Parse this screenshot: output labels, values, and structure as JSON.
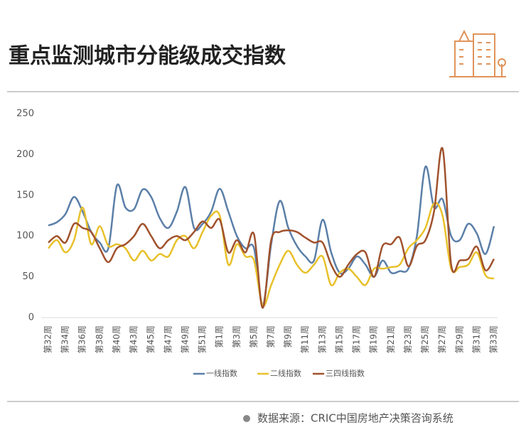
{
  "chart_data": {
    "type": "line",
    "title": "重点监测城市分能级成交指数",
    "source": "数据来源：CRIC中国房地产决策咨询系统",
    "categories": [
      "第32周",
      null,
      "第34周",
      null,
      "第36周",
      null,
      "第38周",
      null,
      "第40周",
      null,
      "第43周",
      null,
      "第45周",
      null,
      "第47周",
      null,
      "第49周",
      null,
      "第51周",
      null,
      "第1周",
      null,
      "第3周",
      null,
      "第5周",
      null,
      "第7周",
      null,
      "第9周",
      null,
      "第11周",
      null,
      "第13周",
      null,
      "第15周",
      null,
      "第17周",
      null,
      "第19周",
      null,
      "第21周",
      null,
      "第23周",
      null,
      "第25周",
      null,
      "第27周",
      null,
      "第29周",
      null,
      "第31周",
      null,
      "第33周"
    ],
    "series": [
      {
        "name": "一线指数",
        "color": "#5b7fa8",
        "values": [
          113,
          117,
          127,
          148,
          130,
          105,
          92,
          85,
          162,
          135,
          133,
          157,
          148,
          122,
          110,
          130,
          160,
          110,
          115,
          130,
          158,
          130,
          100,
          85,
          85,
          15,
          90,
          143,
          110,
          88,
          75,
          70,
          120,
          80,
          55,
          60,
          75,
          65,
          50,
          70,
          55,
          57,
          60,
          100,
          185,
          135,
          145,
          100,
          95,
          115,
          103,
          78,
          112
        ]
      },
      {
        "name": "二线指数",
        "color": "#e8c12a",
        "values": [
          85,
          95,
          80,
          95,
          135,
          90,
          112,
          88,
          90,
          85,
          70,
          82,
          70,
          78,
          75,
          95,
          100,
          85,
          105,
          125,
          125,
          65,
          90,
          75,
          70,
          15,
          40,
          65,
          82,
          65,
          55,
          65,
          75,
          40,
          55,
          60,
          50,
          40,
          60,
          60,
          62,
          65,
          85,
          95,
          110,
          140,
          125,
          60,
          62,
          65,
          80,
          52,
          48
        ]
      },
      {
        "name": "三四线指数",
        "color": "#a0522d",
        "values": [
          92,
          100,
          92,
          115,
          110,
          105,
          85,
          68,
          85,
          90,
          100,
          115,
          100,
          85,
          95,
          100,
          95,
          105,
          118,
          110,
          120,
          80,
          95,
          80,
          102,
          12,
          95,
          105,
          107,
          105,
          98,
          92,
          92,
          65,
          50,
          65,
          78,
          80,
          50,
          88,
          90,
          98,
          63,
          88,
          95,
          130,
          207,
          65,
          70,
          72,
          87,
          58,
          72
        ]
      }
    ],
    "ylim": [
      0,
      250
    ],
    "yticks": [
      0,
      50,
      100,
      150,
      200,
      250
    ],
    "grid": false,
    "legend": "bottom"
  }
}
